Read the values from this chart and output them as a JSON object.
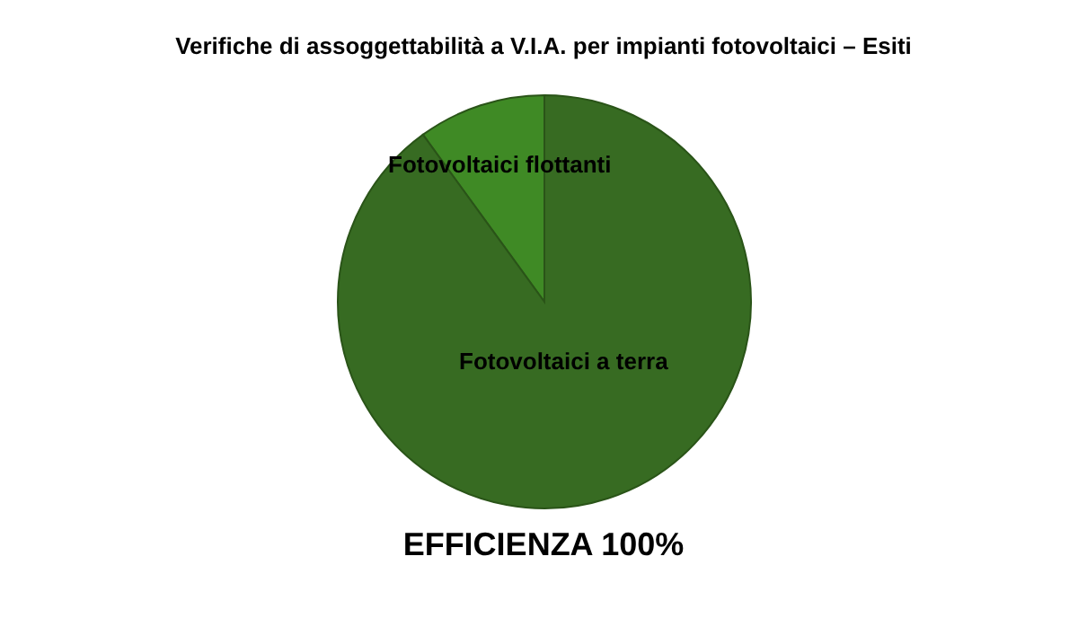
{
  "chart_data": {
    "type": "pie",
    "title": "Verifiche di assoggettabilità a V.I.A. per impianti fotovoltaici – Esiti",
    "categories": [
      "Fotovoltaici flottanti",
      "Fotovoltaici a terra"
    ],
    "values": [
      10,
      90
    ],
    "colors": [
      "#3f8a25",
      "#376b22"
    ],
    "legend": false,
    "annotations": [
      "EFFICIENZA 100%"
    ]
  }
}
